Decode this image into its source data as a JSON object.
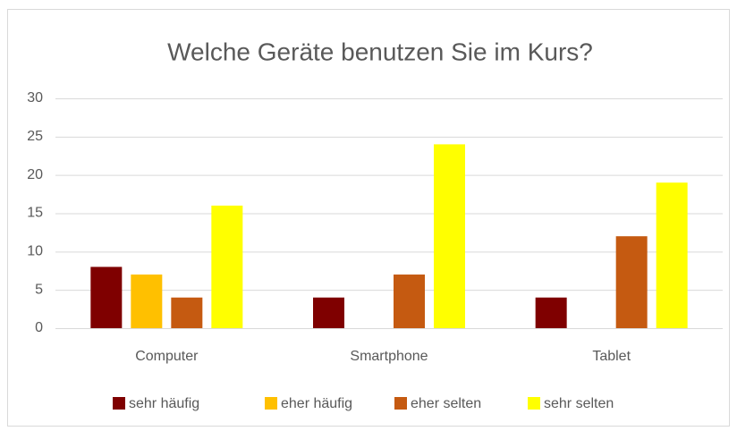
{
  "chart_data": {
    "type": "bar",
    "title": "Welche Geräte benutzen Sie im Kurs?",
    "categories": [
      "Computer",
      "Smartphone",
      "Tablet"
    ],
    "series": [
      {
        "name": "sehr häufig",
        "color": "#7f0000",
        "values": [
          8,
          4,
          4
        ]
      },
      {
        "name": "eher häufig",
        "color": "#ffc000",
        "values": [
          7,
          0,
          0
        ]
      },
      {
        "name": "eher selten",
        "color": "#c55a11",
        "values": [
          4,
          7,
          12
        ]
      },
      {
        "name": "sehr selten",
        "color": "#ffff00",
        "values": [
          16,
          24,
          19
        ]
      }
    ],
    "ylim": [
      0,
      30
    ],
    "yticks": [
      0,
      5,
      10,
      15,
      20,
      25,
      30
    ],
    "grid": true,
    "legend": "bottom"
  }
}
